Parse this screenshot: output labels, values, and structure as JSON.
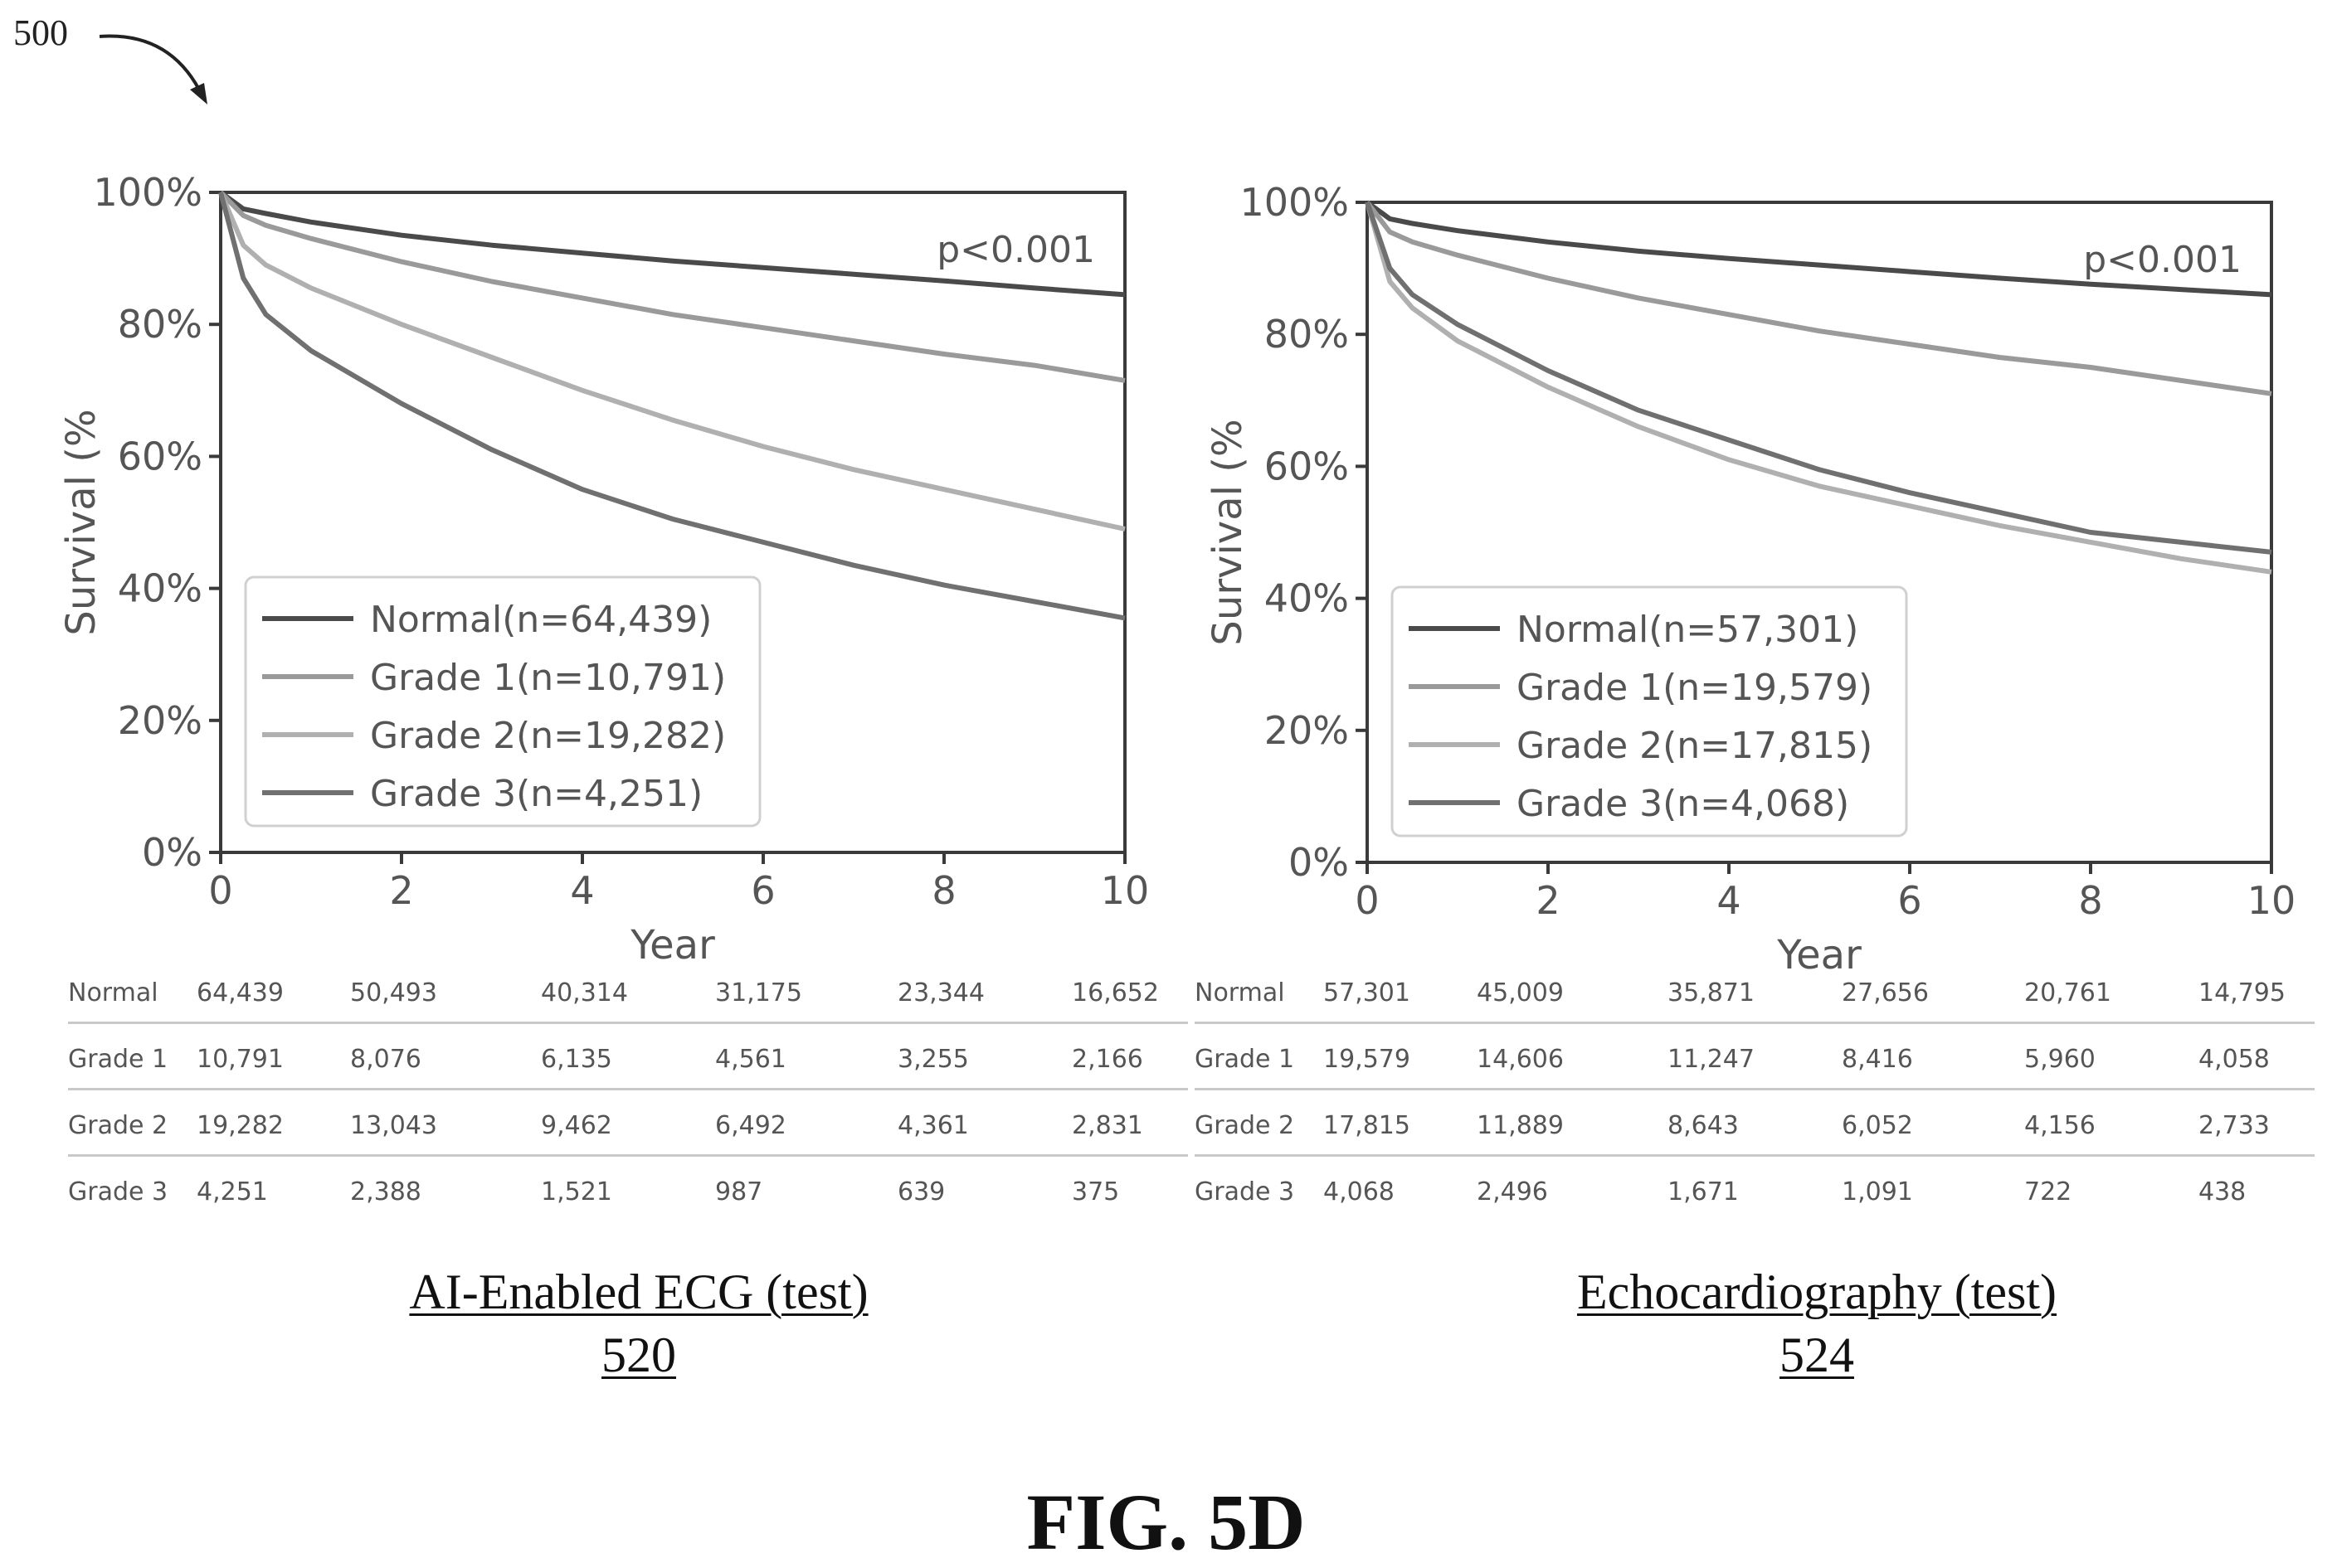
{
  "figure": {
    "ref_numeral": "500",
    "label": "FIG. 5D"
  },
  "panels": [
    {
      "caption_title": "AI-Enabled ECG (test)",
      "caption_ref": "520",
      "table": [
        {
          "label": "Normal",
          "values": [
            "64,439",
            "50,493",
            "40,314",
            "31,175",
            "23,344",
            "16,652"
          ]
        },
        {
          "label": "Grade 1",
          "values": [
            "10,791",
            "8,076",
            "6,135",
            "4,561",
            "3,255",
            "2,166"
          ]
        },
        {
          "label": "Grade 2",
          "values": [
            "19,282",
            "13,043",
            "9,462",
            "6,492",
            "4,361",
            "2,831"
          ]
        },
        {
          "label": "Grade 3",
          "values": [
            "4,251",
            "2,388",
            "1,521",
            "987",
            "639",
            "375"
          ]
        }
      ]
    },
    {
      "caption_title": "Echocardiography (test)",
      "caption_ref": "524",
      "table": [
        {
          "label": "Normal",
          "values": [
            "57,301",
            "45,009",
            "35,871",
            "27,656",
            "20,761",
            "14,795"
          ]
        },
        {
          "label": "Grade 1",
          "values": [
            "19,579",
            "14,606",
            "11,247",
            "8,416",
            "5,960",
            "4,058"
          ]
        },
        {
          "label": "Grade 2",
          "values": [
            "17,815",
            "11,889",
            "8,643",
            "6,052",
            "4,156",
            "2,733"
          ]
        },
        {
          "label": "Grade 3",
          "values": [
            "4,068",
            "2,496",
            "1,671",
            "1,091",
            "722",
            "438"
          ]
        }
      ]
    }
  ],
  "chart_data": [
    {
      "type": "line",
      "title": "",
      "xlabel": "Year",
      "ylabel": "Survival (%",
      "xlim": [
        0,
        10
      ],
      "ylim": [
        0,
        100
      ],
      "xticks": [
        "0",
        "2",
        "4",
        "6",
        "8",
        "10"
      ],
      "yticks": [
        "0%",
        "20%",
        "40%",
        "60%",
        "80%",
        "100%"
      ],
      "annotation": "p<0.001",
      "legend_position": "lower-left",
      "x": [
        0,
        0.25,
        0.5,
        1,
        2,
        3,
        4,
        5,
        6,
        7,
        8,
        9,
        10
      ],
      "series": [
        {
          "name": "Normal(n=64,439)",
          "color": "#4a4a4a",
          "values": [
            100,
            97.5,
            96.8,
            95.5,
            93.5,
            92,
            90.8,
            89.6,
            88.6,
            87.6,
            86.6,
            85.5,
            84.5
          ]
        },
        {
          "name": "Grade 1(n=10,791)",
          "color": "#9a9a9a",
          "values": [
            100,
            96.5,
            95,
            93,
            89.5,
            86.5,
            84,
            81.5,
            79.5,
            77.5,
            75.5,
            73.8,
            71.5
          ]
        },
        {
          "name": "Grade 2(n=19,282)",
          "color": "#b0b0b0",
          "values": [
            100,
            92,
            89,
            85.5,
            80,
            75,
            70,
            65.5,
            61.5,
            58,
            55,
            52,
            49
          ]
        },
        {
          "name": "Grade 3(n=4,251)",
          "color": "#707070",
          "values": [
            100,
            87,
            81.5,
            76,
            68,
            61,
            55,
            50.5,
            47,
            43.5,
            40.5,
            38,
            35.5
          ]
        }
      ]
    },
    {
      "type": "line",
      "title": "",
      "xlabel": "Year",
      "ylabel": "Survival (%",
      "xlim": [
        0,
        10
      ],
      "ylim": [
        0,
        100
      ],
      "xticks": [
        "0",
        "2",
        "4",
        "6",
        "8",
        "10"
      ],
      "yticks": [
        "0%",
        "20%",
        "40%",
        "60%",
        "80%",
        "100%"
      ],
      "annotation": "p<0.001",
      "legend_position": "lower-left",
      "x": [
        0,
        0.25,
        0.5,
        1,
        2,
        3,
        4,
        5,
        6,
        7,
        8,
        9,
        10
      ],
      "series": [
        {
          "name": "Normal(n=57,301)",
          "color": "#4a4a4a",
          "values": [
            100,
            97.5,
            96.8,
            95.7,
            94,
            92.6,
            91.5,
            90.5,
            89.5,
            88.5,
            87.6,
            86.8,
            86
          ]
        },
        {
          "name": "Grade 1(n=19,579)",
          "color": "#9a9a9a",
          "values": [
            100,
            95.5,
            94,
            92,
            88.5,
            85.5,
            83,
            80.5,
            78.5,
            76.5,
            75,
            73,
            71
          ]
        },
        {
          "name": "Grade 2(n=17,815)",
          "color": "#b0b0b0",
          "values": [
            100,
            88,
            84,
            79,
            72,
            66,
            61,
            57,
            54,
            51,
            48.5,
            46,
            44
          ]
        },
        {
          "name": "Grade 3(n=4,068)",
          "color": "#707070",
          "values": [
            100,
            90,
            86,
            81.5,
            74.5,
            68.5,
            64,
            59.5,
            56,
            53,
            50,
            48.5,
            47
          ]
        }
      ]
    }
  ]
}
